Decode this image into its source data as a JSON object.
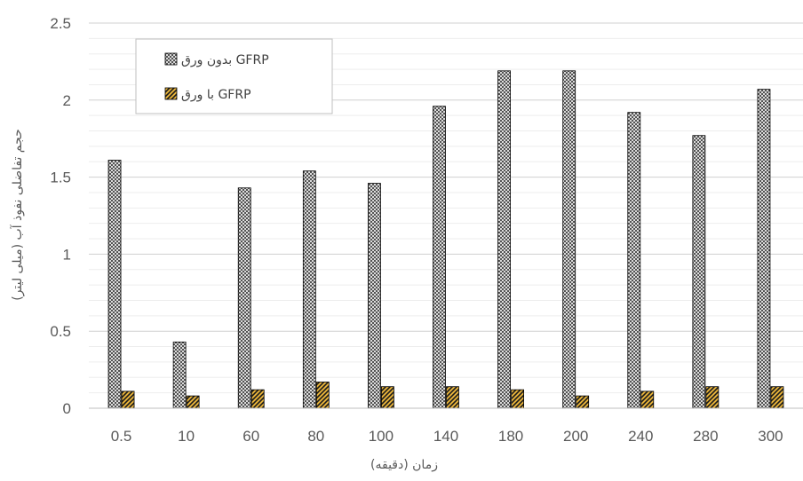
{
  "chart_data": {
    "type": "bar",
    "categories": [
      "0.5",
      "10",
      "60",
      "80",
      "100",
      "140",
      "180",
      "200",
      "240",
      "280",
      "300"
    ],
    "series": [
      {
        "name": "بدون ورق GFRP",
        "values": [
          1.61,
          0.43,
          1.43,
          1.54,
          1.46,
          1.96,
          2.19,
          2.19,
          1.92,
          1.77,
          2.07
        ],
        "pattern": "crosshatch"
      },
      {
        "name": "با ورق GFRP",
        "values": [
          0.11,
          0.08,
          0.12,
          0.17,
          0.14,
          0.14,
          0.12,
          0.08,
          0.11,
          0.14,
          0.14
        ],
        "pattern": "diagonal-gold"
      }
    ],
    "xlabel": "زمان (دقیقه)",
    "ylabel": "حجم تفاضلی نفوذ آب (میلی لیتر)",
    "ylim": [
      0,
      2.5
    ],
    "yticks": [
      "0",
      "0.5",
      "1",
      "1.5",
      "2",
      "2.5"
    ],
    "grid": true,
    "legend_position": "top-left",
    "colors": {
      "gold": "#E8B33A",
      "ink": "#000000",
      "grid": "#D9D9D9"
    }
  }
}
